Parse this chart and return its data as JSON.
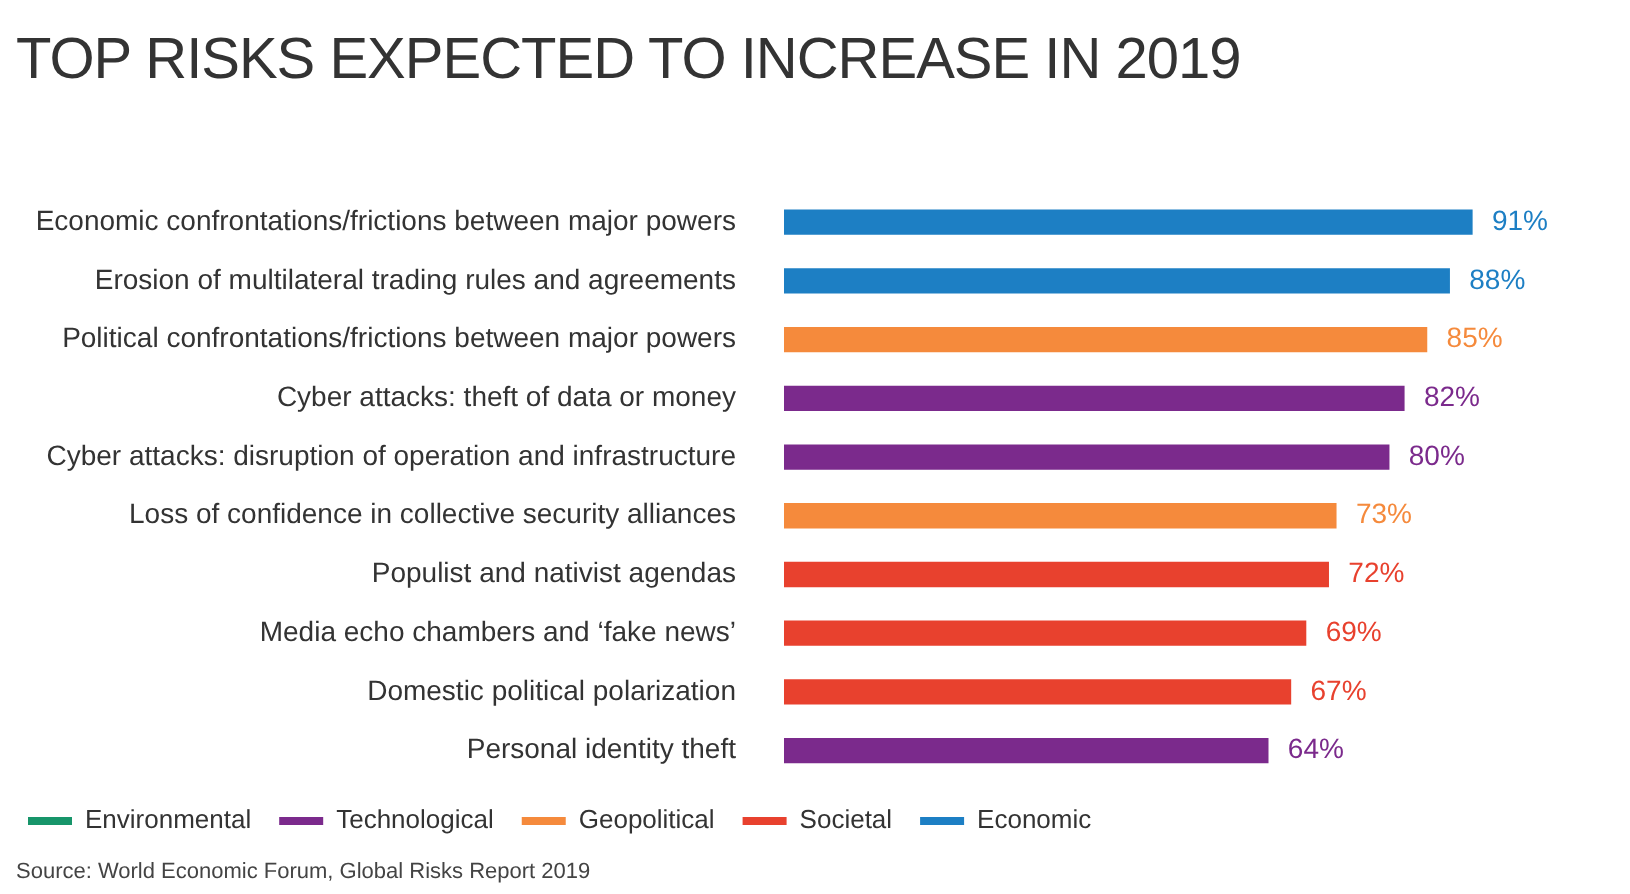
{
  "chart_data": {
    "type": "bar",
    "orientation": "horizontal",
    "title": "TOP RISKS EXPECTED TO INCREASE IN 2019",
    "categories": [
      "Economic confrontations/frictions between major powers",
      "Erosion of multilateral trading rules and agreements",
      "Political confrontations/frictions between major powers",
      "Cyber attacks: theft of data or money",
      "Cyber attacks: disruption of operation and infrastructure",
      "Loss of confidence in collective security alliances",
      "Populist and nativist agendas",
      "Media echo chambers and ‘fake news’",
      "Domestic political polarization",
      "Personal identity theft"
    ],
    "series": [
      {
        "name": "Environmental",
        "color": "#17956a",
        "values": [
          null,
          null,
          null,
          null,
          null,
          null,
          null,
          null,
          null,
          null
        ]
      },
      {
        "name": "Technological",
        "color": "#7b2a8c",
        "values": [
          null,
          null,
          null,
          82,
          80,
          null,
          null,
          null,
          null,
          64
        ],
        "value_labels": [
          null,
          null,
          null,
          "82%",
          "80%",
          null,
          null,
          null,
          null,
          "64%"
        ]
      },
      {
        "name": "Geopolitical",
        "color": "#f58a3c",
        "values": [
          null,
          null,
          85,
          null,
          null,
          73,
          null,
          null,
          null,
          null
        ],
        "value_labels": [
          null,
          null,
          "85%",
          null,
          null,
          "73%",
          null,
          null,
          null,
          null
        ]
      },
      {
        "name": "Societal",
        "color": "#e8412e",
        "values": [
          null,
          null,
          null,
          null,
          null,
          null,
          72,
          69,
          67,
          null
        ],
        "value_labels": [
          null,
          null,
          null,
          null,
          null,
          null,
          "72%",
          "69%",
          "67%",
          null
        ]
      },
      {
        "name": "Economic",
        "color": "#1d7fc4",
        "values": [
          91,
          88,
          null,
          null,
          null,
          null,
          null,
          null,
          null,
          null
        ],
        "value_labels": [
          "91%",
          "88%",
          null,
          null,
          null,
          null,
          null,
          null,
          null,
          null
        ]
      }
    ],
    "legend": "bottom left",
    "grid": false,
    "annotations": [
      "Source: World Economic Forum, Global Risks Report 2019"
    ]
  }
}
